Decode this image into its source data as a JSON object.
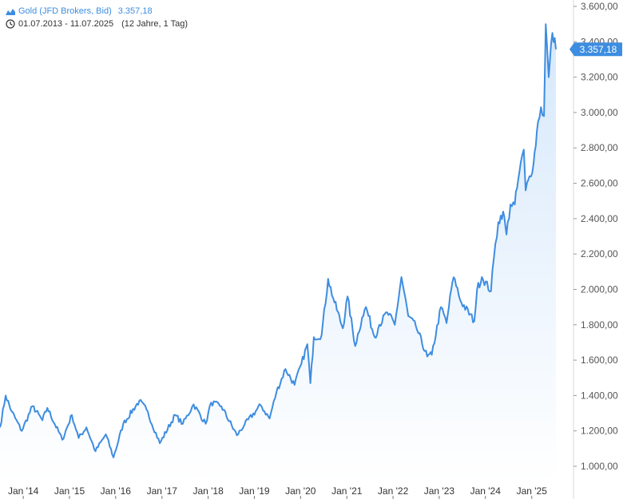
{
  "legend": {
    "series_name": "Gold (JFD Brokers, Bid)",
    "last_value": "3.357,18",
    "date_range": "01.07.2013 - 11.07.2025",
    "range_span": "(12 Jahre, 1 Tag)"
  },
  "colors": {
    "line": "#3d8de0",
    "area_top": "#d6e8fb",
    "area_bottom": "#ffffff",
    "badge": "#3d8de0",
    "axis_line": "#d9d9d9"
  },
  "icons": {
    "series": "area-chart-icon",
    "range": "clock-icon"
  },
  "chart_data": {
    "type": "area",
    "y_axis_position": "right",
    "ylim": [
      900,
      3650
    ],
    "y_ticks": [
      1000,
      1200,
      1400,
      1600,
      1800,
      2000,
      2200,
      2400,
      2600,
      2800,
      3000,
      3200,
      3400,
      3600
    ],
    "y_tick_labels": [
      "1.000,00",
      "1.200,00",
      "1.400,00",
      "1.600,00",
      "1.800,00",
      "2.000,00",
      "2.200,00",
      "2.400,00",
      "2.600,00",
      "2.800,00",
      "3.000,00",
      "3.200,00",
      "3.400,00",
      "3.600,00"
    ],
    "x_tick_labels": [
      "Jan '14",
      "Jan '15",
      "Jan '16",
      "Jan '17",
      "Jan '18",
      "Jan '19",
      "Jan '20",
      "Jan '21",
      "Jan '22",
      "Jan '23",
      "Jan '24",
      "Jan '25"
    ],
    "x_tick_dates": [
      "2014-01-01",
      "2015-01-01",
      "2016-01-01",
      "2017-01-01",
      "2018-01-01",
      "2019-01-01",
      "2020-01-01",
      "2021-01-01",
      "2022-01-01",
      "2023-01-01",
      "2024-01-01",
      "2025-01-01"
    ],
    "xlim": [
      "2013-07-01",
      "2025-07-11"
    ],
    "last_value_label": "3.357,18",
    "last_value": 3357.18,
    "series": [
      {
        "x": [
          "2013-07-01",
          "2013-08-15",
          "2013-10-01",
          "2013-12-20",
          "2014-03-15",
          "2014-06-01",
          "2014-07-10",
          "2014-11-05",
          "2015-01-20",
          "2015-03-15",
          "2015-05-15",
          "2015-07-25",
          "2015-10-15",
          "2015-12-15",
          "2016-03-01",
          "2016-07-06",
          "2016-09-01",
          "2016-12-15",
          "2017-04-15",
          "2017-06-15",
          "2017-09-08",
          "2017-12-12",
          "2018-01-25",
          "2018-04-15",
          "2018-08-16",
          "2018-10-15",
          "2019-02-20",
          "2019-05-01",
          "2019-06-25",
          "2019-09-04",
          "2019-11-15",
          "2020-01-08",
          "2020-02-24",
          "2020-03-19",
          "2020-04-15",
          "2020-06-15",
          "2020-08-06",
          "2020-09-15",
          "2020-11-30",
          "2021-01-06",
          "2021-03-08",
          "2021-05-01",
          "2021-06-01",
          "2021-08-09",
          "2021-09-15",
          "2021-11-16",
          "2022-01-15",
          "2022-03-08",
          "2022-05-01",
          "2022-07-01",
          "2022-09-28",
          "2022-11-03",
          "2023-01-15",
          "2023-02-28",
          "2023-04-15",
          "2023-05-04",
          "2023-06-15",
          "2023-10-05",
          "2023-10-27",
          "2023-12-04",
          "2024-02-14",
          "2024-03-08",
          "2024-04-12",
          "2024-05-20",
          "2024-06-15",
          "2024-07-17",
          "2024-08-20",
          "2024-09-25",
          "2024-10-30",
          "2024-11-14",
          "2024-12-15",
          "2025-01-15",
          "2025-02-20",
          "2025-03-15",
          "2025-04-08",
          "2025-04-22",
          "2025-05-15",
          "2025-06-13",
          "2025-07-11"
        ],
        "y": [
          1220,
          1400,
          1310,
          1200,
          1340,
          1260,
          1330,
          1150,
          1290,
          1160,
          1220,
          1085,
          1180,
          1050,
          1240,
          1370,
          1320,
          1130,
          1290,
          1240,
          1350,
          1240,
          1360,
          1340,
          1175,
          1235,
          1345,
          1270,
          1420,
          1550,
          1460,
          1580,
          1690,
          1470,
          1730,
          1740,
          2060,
          1950,
          1780,
          1960,
          1680,
          1840,
          1900,
          1730,
          1800,
          1870,
          1800,
          2070,
          1850,
          1790,
          1620,
          1630,
          1900,
          1810,
          2040,
          2060,
          1940,
          1820,
          2000,
          2070,
          1990,
          2180,
          2380,
          2440,
          2310,
          2480,
          2480,
          2660,
          2790,
          2560,
          2640,
          2710,
          2950,
          3030,
          2980,
          3500,
          3200,
          3450,
          3357.18
        ]
      }
    ]
  }
}
